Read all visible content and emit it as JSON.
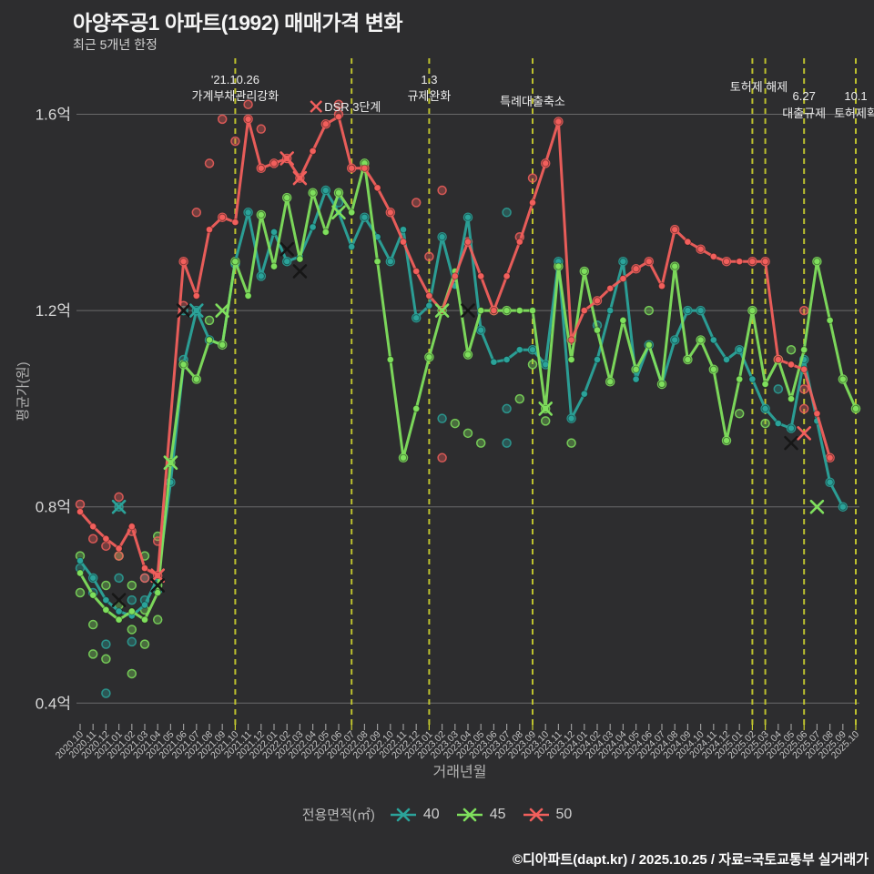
{
  "header": {
    "title": "아양주공1 아파트(1992) 매매가격 변화",
    "subtitle": "최근 5개년 한정"
  },
  "footer": {
    "credit": "©디아파트(dapt.kr) / 2025.10.25 / 자료=국토교통부 실거래가"
  },
  "legend": {
    "title": "전용면적(㎡)",
    "items": [
      {
        "label": "40",
        "color": "#2ba39a"
      },
      {
        "label": "45",
        "color": "#7fdf5d"
      },
      {
        "label": "50",
        "color": "#f15f5c"
      }
    ]
  },
  "chart_data": {
    "type": "line+scatter",
    "title": "아양주공1 아파트(1992) 매매가격 변화",
    "xlabel": "거래년월",
    "ylabel": "평균가(원)",
    "unit": "억원",
    "grid": true,
    "legend_position": "bottom",
    "event_line_color": "#cdd22e",
    "y_ticks": [
      {
        "label": "1.6억",
        "value": 1.6
      },
      {
        "label": "1.2억",
        "value": 1.2
      },
      {
        "label": "0.8억",
        "value": 0.8
      },
      {
        "label": "0.4억",
        "value": 0.4
      }
    ],
    "y_range": [
      0.35,
      1.71
    ],
    "x": [
      "2020.10",
      "2020.11",
      "2020.12",
      "2021.01",
      "2021.02",
      "2021.03",
      "2021.04",
      "2021.05",
      "2021.06",
      "2021.07",
      "2021.08",
      "2021.09",
      "2021.10",
      "2021.11",
      "2021.12",
      "2022.01",
      "2022.02",
      "2022.03",
      "2022.04",
      "2022.05",
      "2022.06",
      "2022.07",
      "2022.08",
      "2022.09",
      "2022.10",
      "2022.11",
      "2022.12",
      "2023.01",
      "2023.02",
      "2023.03",
      "2023.04",
      "2023.05",
      "2023.06",
      "2023.07",
      "2023.08",
      "2023.09",
      "2023.10",
      "2023.11",
      "2023.12",
      "2024.01",
      "2024.02",
      "2024.03",
      "2024.04",
      "2024.05",
      "2024.06",
      "2024.07",
      "2024.08",
      "2024.09",
      "2024.10",
      "2024.11",
      "2024.12",
      "2025.01",
      "2025.02",
      "2025.03",
      "2025.04",
      "2025.05",
      "2025.06",
      "2025.07",
      "2025.08",
      "2025.09",
      "2025.10"
    ],
    "series": [
      {
        "name": "40",
        "color": "#2ba39a",
        "values": [
          0.69,
          0.655,
          0.61,
          0.587,
          0.578,
          0.6,
          0.655,
          0.85,
          1.09,
          1.2,
          1.14,
          1.13,
          1.3,
          1.4,
          1.27,
          1.36,
          1.3,
          1.31,
          1.37,
          1.445,
          1.4,
          1.33,
          1.39,
          1.35,
          1.3,
          1.365,
          1.185,
          1.21,
          1.35,
          1.25,
          1.39,
          1.16,
          1.095,
          1.1,
          1.12,
          1.12,
          1.09,
          1.3,
          0.98,
          1.03,
          1.1,
          1.2,
          1.3,
          1.06,
          1.13,
          1.05,
          1.14,
          1.2,
          1.2,
          1.14,
          1.1,
          1.12,
          1.06,
          1.0,
          0.97,
          0.96,
          1.1,
          0.975,
          0.85,
          0.8,
          null
        ]
      },
      {
        "name": "45",
        "color": "#7fdf5d",
        "values": [
          0.665,
          0.62,
          0.59,
          0.57,
          0.587,
          0.57,
          0.625,
          0.89,
          1.09,
          1.06,
          1.14,
          1.13,
          1.3,
          1.23,
          1.395,
          1.29,
          1.43,
          1.305,
          1.44,
          1.36,
          1.44,
          1.4,
          1.5,
          1.3,
          1.1,
          0.9,
          1.0,
          1.105,
          1.2,
          1.28,
          1.11,
          1.2,
          1.2,
          1.2,
          1.2,
          1.2,
          1.0,
          1.29,
          1.1,
          1.28,
          1.16,
          1.055,
          1.18,
          1.08,
          1.13,
          1.05,
          1.29,
          1.1,
          1.14,
          1.08,
          0.935,
          1.06,
          1.2,
          1.05,
          1.1,
          1.02,
          1.12,
          1.3,
          1.18,
          1.06,
          1.0
        ]
      },
      {
        "name": "50",
        "color": "#f15f5c",
        "values": [
          0.79,
          0.76,
          0.735,
          0.715,
          0.76,
          0.675,
          0.66,
          null,
          1.3,
          1.23,
          1.365,
          1.39,
          1.38,
          1.59,
          1.49,
          1.5,
          1.51,
          1.47,
          1.525,
          1.58,
          1.595,
          1.49,
          1.49,
          1.45,
          1.4,
          1.34,
          1.28,
          1.23,
          1.2,
          1.27,
          1.34,
          1.27,
          1.2,
          1.27,
          1.34,
          1.42,
          1.5,
          1.585,
          1.14,
          1.2,
          1.22,
          1.245,
          1.265,
          1.285,
          1.3,
          1.25,
          1.365,
          1.34,
          1.325,
          1.31,
          1.3,
          1.3,
          1.3,
          1.3,
          1.1,
          1.09,
          1.08,
          0.99,
          0.9,
          null,
          null
        ]
      }
    ],
    "scatter": {
      "40": [
        [
          0,
          0.675
        ],
        [
          1,
          0.655
        ],
        [
          1,
          0.625
        ],
        [
          2,
          0.52
        ],
        [
          2,
          0.42
        ],
        [
          3,
          0.8
        ],
        [
          3,
          0.655
        ],
        [
          4,
          0.61
        ],
        [
          4,
          0.525
        ],
        [
          5,
          0.655
        ],
        [
          5,
          0.61
        ],
        [
          6,
          0.63
        ],
        [
          7,
          0.85
        ],
        [
          8,
          1.2
        ],
        [
          8,
          1.1
        ],
        [
          9,
          1.2
        ],
        [
          10,
          1.14
        ],
        [
          12,
          1.295
        ],
        [
          13,
          1.4
        ],
        [
          14,
          1.27
        ],
        [
          16,
          1.3
        ],
        [
          19,
          1.445
        ],
        [
          20,
          1.42
        ],
        [
          22,
          1.39
        ],
        [
          24,
          1.3
        ],
        [
          26,
          1.185
        ],
        [
          28,
          1.35
        ],
        [
          28,
          0.98
        ],
        [
          30,
          1.39
        ],
        [
          31,
          1.16
        ],
        [
          33,
          1.4
        ],
        [
          33,
          1.0
        ],
        [
          33,
          0.93
        ],
        [
          35,
          1.12
        ],
        [
          36,
          1.09
        ],
        [
          37,
          1.3
        ],
        [
          38,
          0.98
        ],
        [
          40,
          1.17
        ],
        [
          42,
          1.3
        ],
        [
          44,
          1.13
        ],
        [
          46,
          1.14
        ],
        [
          47,
          1.2
        ],
        [
          48,
          1.2
        ],
        [
          51,
          1.12
        ],
        [
          53,
          1.0
        ],
        [
          54,
          1.04
        ],
        [
          55,
          0.96
        ],
        [
          56,
          1.1
        ],
        [
          58,
          0.85
        ],
        [
          59,
          0.8
        ]
      ],
      "45": [
        [
          0,
          0.7
        ],
        [
          0,
          0.625
        ],
        [
          1,
          0.56
        ],
        [
          1,
          0.5
        ],
        [
          2,
          0.64
        ],
        [
          2,
          0.49
        ],
        [
          3,
          0.7
        ],
        [
          3,
          0.6
        ],
        [
          4,
          0.64
        ],
        [
          4,
          0.55
        ],
        [
          4,
          0.46
        ],
        [
          5,
          0.7
        ],
        [
          5,
          0.59
        ],
        [
          5,
          0.52
        ],
        [
          6,
          0.74
        ],
        [
          6,
          0.64
        ],
        [
          6,
          0.57
        ],
        [
          7,
          0.89
        ],
        [
          8,
          1.09
        ],
        [
          9,
          1.06
        ],
        [
          10,
          1.18
        ],
        [
          11,
          1.13
        ],
        [
          12,
          1.3
        ],
        [
          14,
          1.395
        ],
        [
          16,
          1.43
        ],
        [
          18,
          1.44
        ],
        [
          20,
          1.44
        ],
        [
          22,
          1.5
        ],
        [
          25,
          0.9
        ],
        [
          27,
          1.105
        ],
        [
          28,
          1.2
        ],
        [
          29,
          0.97
        ],
        [
          30,
          1.11
        ],
        [
          30,
          0.95
        ],
        [
          31,
          0.93
        ],
        [
          32,
          1.2
        ],
        [
          33,
          1.2
        ],
        [
          34,
          1.02
        ],
        [
          35,
          1.09
        ],
        [
          36,
          1.0
        ],
        [
          36,
          0.975
        ],
        [
          37,
          1.29
        ],
        [
          38,
          0.93
        ],
        [
          39,
          1.28
        ],
        [
          41,
          1.055
        ],
        [
          43,
          1.08
        ],
        [
          44,
          1.2
        ],
        [
          45,
          1.05
        ],
        [
          46,
          1.29
        ],
        [
          47,
          1.1
        ],
        [
          48,
          1.14
        ],
        [
          49,
          1.08
        ],
        [
          50,
          0.935
        ],
        [
          51,
          0.99
        ],
        [
          52,
          1.2
        ],
        [
          53,
          0.97
        ],
        [
          54,
          1.1
        ],
        [
          55,
          1.12
        ],
        [
          57,
          1.3
        ],
        [
          59,
          1.06
        ],
        [
          60,
          1.0
        ]
      ],
      "50": [
        [
          0,
          0.805
        ],
        [
          1,
          0.735
        ],
        [
          2,
          0.72
        ],
        [
          3,
          0.82
        ],
        [
          3,
          0.7
        ],
        [
          4,
          0.75
        ],
        [
          5,
          0.655
        ],
        [
          6,
          0.73
        ],
        [
          6,
          0.66
        ],
        [
          8,
          1.3
        ],
        [
          8,
          1.21
        ],
        [
          9,
          1.4
        ],
        [
          10,
          1.5
        ],
        [
          11,
          1.59
        ],
        [
          11,
          1.39
        ],
        [
          12,
          1.545
        ],
        [
          13,
          1.62
        ],
        [
          13,
          1.59
        ],
        [
          14,
          1.57
        ],
        [
          14,
          1.49
        ],
        [
          15,
          1.5
        ],
        [
          16,
          1.51
        ],
        [
          17,
          1.47
        ],
        [
          19,
          1.58
        ],
        [
          20,
          1.62
        ],
        [
          20,
          1.6
        ],
        [
          21,
          1.49
        ],
        [
          22,
          1.49
        ],
        [
          24,
          1.4
        ],
        [
          26,
          1.42
        ],
        [
          27,
          1.31
        ],
        [
          28,
          1.445
        ],
        [
          28,
          0.9
        ],
        [
          30,
          1.34
        ],
        [
          32,
          1.2
        ],
        [
          34,
          1.35
        ],
        [
          35,
          1.47
        ],
        [
          36,
          1.5
        ],
        [
          37,
          1.585
        ],
        [
          38,
          1.14
        ],
        [
          40,
          1.22
        ],
        [
          43,
          1.285
        ],
        [
          44,
          1.3
        ],
        [
          46,
          1.365
        ],
        [
          48,
          1.325
        ],
        [
          50,
          1.3
        ],
        [
          52,
          1.3
        ],
        [
          53,
          1.3
        ],
        [
          54,
          1.1
        ],
        [
          56,
          1.2
        ],
        [
          56,
          1.04
        ],
        [
          56,
          1.0
        ],
        [
          58,
          0.9
        ]
      ]
    },
    "x_markers": [
      {
        "series": "40",
        "m": 3,
        "v": 0.8,
        "dark": false
      },
      {
        "series": "40",
        "m": 3,
        "v": 0.61,
        "dark": true
      },
      {
        "series": "50",
        "m": 6,
        "v": 0.66,
        "dark": false
      },
      {
        "series": "40",
        "m": 6,
        "v": 0.64,
        "dark": true
      },
      {
        "series": "45",
        "m": 7,
        "v": 0.89,
        "dark": false
      },
      {
        "series": "40",
        "m": 8,
        "v": 1.2,
        "dark": true
      },
      {
        "series": "40",
        "m": 9,
        "v": 1.2,
        "dark": false
      },
      {
        "series": "45",
        "m": 11,
        "v": 1.2,
        "dark": false
      },
      {
        "series": "50",
        "m": 16,
        "v": 1.51,
        "dark": false
      },
      {
        "series": "50",
        "m": 17,
        "v": 1.47,
        "dark": false
      },
      {
        "series": "40",
        "m": 16,
        "v": 1.325,
        "dark": true
      },
      {
        "series": "40",
        "m": 17,
        "v": 1.28,
        "dark": true
      },
      {
        "series": "45",
        "m": 20,
        "v": 1.4,
        "dark": false
      },
      {
        "series": "45",
        "m": 28,
        "v": 1.2,
        "dark": false
      },
      {
        "series": "45",
        "m": 30,
        "v": 1.2,
        "dark": true
      },
      {
        "series": "45",
        "m": 36,
        "v": 1.0,
        "dark": false
      },
      {
        "series": "40",
        "m": 55,
        "v": 0.93,
        "dark": true
      },
      {
        "series": "50",
        "m": 56,
        "v": 0.95,
        "dark": false
      },
      {
        "series": "45",
        "m": 57,
        "v": 0.8,
        "dark": false
      }
    ],
    "events": [
      {
        "months": [
          12
        ],
        "lines": [
          "'21.10.26",
          "가계부채관리강화"
        ],
        "dy": [
          92,
          110
        ]
      },
      {
        "months": [
          21
        ],
        "lines": [
          "DSR 3단계"
        ],
        "dy": [
          122
        ],
        "align": "left",
        "marker": "x-red"
      },
      {
        "months": [
          27
        ],
        "lines": [
          "1.3",
          "규제완화"
        ],
        "dy": [
          92,
          110
        ]
      },
      {
        "months": [
          35
        ],
        "lines": [
          "특례대출축소"
        ],
        "dy": [
          116
        ]
      },
      {
        "months": [
          52,
          53
        ],
        "lines": [
          "토허제 해제"
        ],
        "dy": [
          100
        ]
      },
      {
        "months": [
          56
        ],
        "lines": [
          "6.27",
          "대출규제"
        ],
        "dy": [
          110,
          129
        ]
      },
      {
        "months": [
          60
        ],
        "lines": [
          "10.1",
          "토허제확"
        ],
        "dy": [
          110,
          129
        ]
      }
    ]
  }
}
